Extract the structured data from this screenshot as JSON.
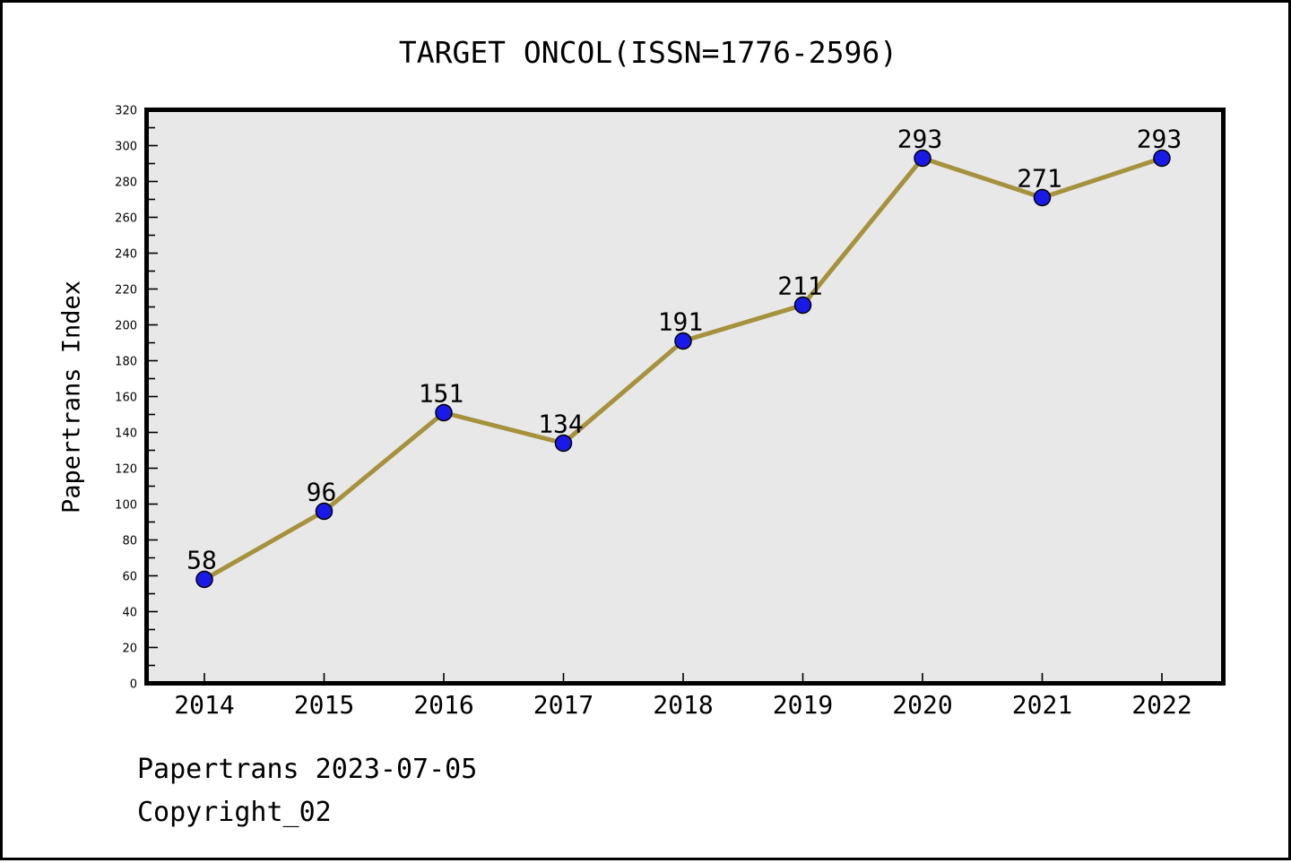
{
  "chart_data": {
    "type": "line",
    "title": "TARGET ONCOL(ISSN=1776-2596)",
    "xlabel": "",
    "ylabel": "Papertrans Index",
    "categories": [
      "2014",
      "2015",
      "2016",
      "2017",
      "2018",
      "2019",
      "2020",
      "2021",
      "2022"
    ],
    "values": [
      58,
      96,
      151,
      134,
      191,
      211,
      293,
      271,
      293
    ],
    "point_labels": [
      "58",
      "96",
      "151",
      "134",
      "191",
      "211",
      "293",
      "271",
      "293"
    ],
    "ylim": [
      0,
      320
    ],
    "ytick_step": 20,
    "yminor_step": 10,
    "grid": false,
    "legend_position": "none",
    "line_color": "#a6913c",
    "marker_color": "#1a1ae8",
    "marker_edge_color": "#000000",
    "plot_background": "#e8e8e8",
    "axis_color": "#000000",
    "tick_label_color": "#000000"
  },
  "footer": {
    "line1": "Papertrans 2023-07-05",
    "line2": "Copyright_02"
  }
}
